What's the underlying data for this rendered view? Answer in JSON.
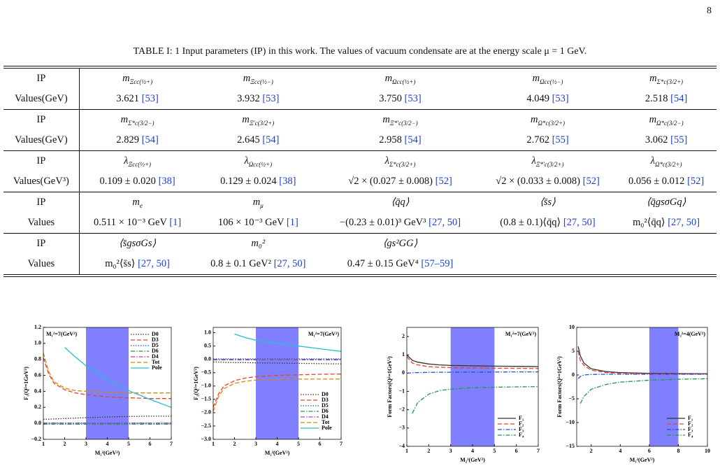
{
  "page_number": "8",
  "table": {
    "caption": "TABLE I: 1 Input parameters (IP) in this work. The values of vacuum condensate are at the energy scale μ = 1 GeV.",
    "rows": [
      [
        "IP",
        {
          "base": "m",
          "sub": "Ξcc(½+)"
        },
        {
          "base": "m",
          "sub": "Ξcc(½−)"
        },
        {
          "base": "m",
          "sub": "Ωcc(½+)"
        },
        {
          "base": "m",
          "sub": "Ωcc(½−)"
        },
        {
          "base": "m",
          "sub": "Σ*c(3/2+)"
        }
      ],
      [
        "Values(GeV)",
        {
          "text": "3.621",
          "ref": "[53]"
        },
        {
          "text": "3.932",
          "ref": "[53]"
        },
        {
          "text": "3.750",
          "ref": "[53]"
        },
        {
          "text": "4.049",
          "ref": "[53]"
        },
        {
          "text": "2.518",
          "ref": "[54]"
        }
      ],
      [
        "IP",
        {
          "base": "m",
          "sub": "Σ*c(3/2−)"
        },
        {
          "base": "m",
          "sub": "Ξ′c(3/2+)"
        },
        {
          "base": "m",
          "sub": "Ξ*′c(3/2−)"
        },
        {
          "base": "m",
          "sub": "Ω*c(3/2+)"
        },
        {
          "base": "m",
          "sub": "Ω*c(3/2−)"
        }
      ],
      [
        "Values(GeV)",
        {
          "text": "2.829",
          "ref": "[54]"
        },
        {
          "text": "2.645",
          "ref": "[54]"
        },
        {
          "text": "2.958",
          "ref": "[54]"
        },
        {
          "text": "2.762",
          "ref": "[55]"
        },
        {
          "text": "3.062",
          "ref": "[55]"
        }
      ],
      [
        "IP",
        {
          "base": "λ",
          "sub": "Ξcc(½+)"
        },
        {
          "base": "λ",
          "sub": "Ωcc(½+)"
        },
        {
          "base": "λ",
          "sub": "Σ*c(3/2+)"
        },
        {
          "base": "λ",
          "sub": "Ξ*′c(3/2+)"
        },
        {
          "base": "λ",
          "sub": "Ω*c(3/2+)"
        }
      ],
      [
        "Values(GeV³)",
        {
          "text": "0.109 ± 0.020",
          "ref": "[38]"
        },
        {
          "text": "0.129 ± 0.024",
          "ref": "[38]"
        },
        {
          "text": "√2 × (0.027 ± 0.008)",
          "ref": "[52]"
        },
        {
          "text": "√2 × (0.033 ± 0.008)",
          "ref": "[52]"
        },
        {
          "text": "0.056 ± 0.012",
          "ref": "[52]"
        }
      ],
      [
        "IP",
        {
          "base": "m",
          "sub": "e"
        },
        {
          "base": "m",
          "sub": "μ"
        },
        "⟨q̄q⟩",
        "⟨s̄s⟩",
        "⟨q̄gsσGq⟩"
      ],
      [
        "Values",
        {
          "text": "0.511 × 10⁻³ GeV",
          "ref": "[1]"
        },
        {
          "text": "106 × 10⁻³ GeV",
          "ref": "[1]"
        },
        {
          "text": "−(0.23 ± 0.01)³ GeV³",
          "ref": "[27, 50]"
        },
        {
          "text": "(0.8 ± 0.1)⟨q̄q⟩",
          "ref": "[27, 50]"
        },
        {
          "text": "m₀²⟨q̄q⟩",
          "ref": "[27, 50]"
        }
      ],
      [
        "IP",
        "⟨s̄gsσGs⟩",
        "m₀²",
        "⟨gs²GG⟩"
      ],
      [
        "Values",
        {
          "text": "m₀²⟨s̄s⟩",
          "ref": "[27, 50]"
        },
        {
          "text": "0.8 ± 0.1 GeV²",
          "ref": "[27, 50]"
        },
        {
          "text": "0.47 ± 0.15 GeV⁴",
          "ref": "[57–59]"
        }
      ]
    ]
  },
  "chart_data": [
    {
      "type": "line",
      "xlabel": "M₂²(GeV²)",
      "ylabel": "F₁(Q²=1GeV²)",
      "annotation": "M₁²=7(GeV²)",
      "legend": "upper right",
      "x": [
        1,
        1.25,
        1.5,
        2,
        2.5,
        3,
        4,
        5,
        6,
        7
      ],
      "xlim": [
        1,
        7
      ],
      "xticks": [
        1,
        2,
        3,
        4,
        5,
        6,
        7
      ],
      "ylim": [
        -0.2,
        1.2
      ],
      "yticks": [
        {
          "value": -0.2,
          "label": "−0.2"
        },
        {
          "value": 0,
          "label": "0.0"
        },
        0.2,
        0.4,
        0.6,
        0.8,
        {
          "value": 1,
          "label": "1.0"
        },
        1.2
      ],
      "band": {
        "x": [
          3,
          5
        ],
        "color": "#8080ff"
      },
      "series": [
        {
          "name": "D0",
          "color": "#333333",
          "dash": "dotted",
          "values": [
            0.05,
            0.052,
            0.055,
            0.06,
            0.065,
            0.07,
            0.08,
            0.085,
            0.09,
            0.09
          ]
        },
        {
          "name": "D3",
          "color": "#e8402f",
          "dash": "dashed",
          "values": [
            0.82,
            0.62,
            0.5,
            0.42,
            0.38,
            0.36,
            0.33,
            0.32,
            0.31,
            0.31
          ]
        },
        {
          "name": "D5",
          "color": "#1f4fe0",
          "dash": "dotted",
          "values": [
            0,
            0,
            0,
            0,
            0,
            0,
            0,
            0,
            0,
            0
          ]
        },
        {
          "name": "D6",
          "color": "#1a9a50",
          "dash": "dashdot",
          "values": [
            -0.01,
            -0.01,
            -0.01,
            -0.01,
            -0.01,
            -0.01,
            -0.01,
            -0.01,
            -0.01,
            -0.01
          ]
        },
        {
          "name": "D4",
          "color": "#b040c0",
          "dash": "dashdot",
          "values": [
            0.005,
            0.005,
            0.005,
            0.005,
            0.005,
            0.005,
            0.005,
            0.005,
            0.005,
            0.005
          ]
        },
        {
          "name": "Tot",
          "color": "#d08a00",
          "dash": "dashed",
          "values": [
            0.88,
            0.65,
            0.52,
            0.44,
            0.41,
            0.4,
            0.39,
            0.38,
            0.38,
            0.38
          ]
        },
        {
          "name": "Pole",
          "color": "#20c0d0",
          "dash": "solid",
          "values": [
            null,
            null,
            null,
            0.95,
            0.83,
            0.72,
            0.55,
            0.41,
            0.3,
            0.2
          ]
        }
      ]
    },
    {
      "type": "line",
      "xlabel": "M₂²(GeV²)",
      "ylabel": "F₂(Q²=1GeV²)",
      "annotation": "M₁²=7(GeV²)",
      "legend": "lower right",
      "x": [
        1,
        1.25,
        1.5,
        2,
        2.5,
        3,
        4,
        5,
        6,
        7
      ],
      "xlim": [
        1,
        7
      ],
      "xticks": [
        1,
        2,
        3,
        4,
        5,
        6,
        7
      ],
      "ylim": [
        -3,
        1.2
      ],
      "yticks": [
        {
          "value": -3,
          "label": "−3.0"
        },
        {
          "value": -2.5,
          "label": "−2.5"
        },
        {
          "value": -2,
          "label": "−2.0"
        },
        {
          "value": -1.5,
          "label": "−1.5"
        },
        {
          "value": -1,
          "label": "−1.0"
        },
        {
          "value": -0.5,
          "label": "−0.5"
        },
        {
          "value": 0,
          "label": "0.0"
        },
        0.5,
        {
          "value": 1,
          "label": "1.0"
        }
      ],
      "band": {
        "x": [
          3,
          5
        ],
        "color": "#8080ff"
      },
      "series": [
        {
          "name": "D0",
          "color": "#333333",
          "dash": "dotted",
          "values": [
            -0.1,
            -0.1,
            -0.11,
            -0.12,
            -0.12,
            -0.13,
            -0.14,
            -0.15,
            -0.16,
            -0.17
          ]
        },
        {
          "name": "D3",
          "color": "#e8402f",
          "dash": "dashed",
          "values": [
            -1.8,
            -1.3,
            -1.0,
            -0.8,
            -0.7,
            -0.65,
            -0.6,
            -0.58,
            -0.56,
            -0.55
          ]
        },
        {
          "name": "D5",
          "color": "#1f4fe0",
          "dash": "dotted",
          "values": [
            0.02,
            0.02,
            0.02,
            0.02,
            0.02,
            0.02,
            0.02,
            0.02,
            0.02,
            0.02
          ]
        },
        {
          "name": "D6",
          "color": "#1a9a50",
          "dash": "dashdot",
          "values": [
            -0.02,
            -0.02,
            -0.02,
            -0.02,
            -0.02,
            -0.02,
            -0.02,
            -0.02,
            -0.02,
            -0.02
          ]
        },
        {
          "name": "D4",
          "color": "#b040c0",
          "dash": "dashdot",
          "values": [
            0,
            0,
            0,
            0,
            0,
            0,
            0,
            0,
            0,
            0
          ]
        },
        {
          "name": "Tot",
          "color": "#d08a00",
          "dash": "dashed",
          "values": [
            -1.95,
            -1.4,
            -1.1,
            -0.9,
            -0.82,
            -0.78,
            -0.75,
            -0.74,
            -0.74,
            -0.74
          ]
        },
        {
          "name": "Pole",
          "color": "#20c0d0",
          "dash": "solid",
          "values": [
            null,
            null,
            null,
            0.95,
            0.82,
            0.72,
            0.6,
            0.5,
            0.4,
            0.3
          ]
        }
      ]
    },
    {
      "type": "line",
      "xlabel": "M₂²(GeV²)",
      "ylabel": "Form Factors(Q²=1GeV²)",
      "annotation": "M₁²=7(GeV²)",
      "legend": "lower right",
      "x": [
        1,
        1.25,
        1.5,
        2,
        2.5,
        3,
        4,
        5,
        6,
        7
      ],
      "xlim": [
        1,
        7
      ],
      "xticks": [
        1,
        2,
        3,
        4,
        5,
        6,
        7
      ],
      "ylim": [
        -4,
        2.5
      ],
      "yticks": [
        {
          "value": -4,
          "label": "−4"
        },
        {
          "value": -3,
          "label": "−3"
        },
        {
          "value": -2,
          "label": "−2"
        },
        {
          "value": -1,
          "label": "−1"
        },
        0,
        1,
        2
      ],
      "band": {
        "x": [
          3,
          5
        ],
        "color": "#8080ff"
      },
      "series": [
        {
          "name": "F₁",
          "color": "#333333",
          "dash": "solid",
          "values": [
            1.0,
            0.7,
            0.6,
            0.5,
            0.45,
            0.42,
            0.4,
            0.38,
            0.37,
            0.36
          ]
        },
        {
          "name": "F₂",
          "color": "#e8402f",
          "dash": "dashed",
          "values": [
            0.9,
            0.55,
            0.45,
            0.35,
            0.32,
            0.3,
            0.28,
            0.27,
            0.26,
            0.25
          ]
        },
        {
          "name": "F₃",
          "color": "#1f4fe0",
          "dash": "dashdot",
          "values": [
            0,
            0.02,
            0.03,
            0.04,
            0.05,
            0.05,
            0.06,
            0.06,
            0.07,
            0.07
          ]
        },
        {
          "name": "F₄",
          "color": "#1a9a50",
          "dash": "dashdot",
          "values": [
            null,
            -2.2,
            -1.6,
            -1.15,
            -0.95,
            -0.88,
            -0.8,
            -0.77,
            -0.75,
            -0.74
          ]
        }
      ]
    },
    {
      "type": "line",
      "xlabel": "M₁²(GeV²)",
      "ylabel": "Form Factors(Q²=1GeV²)",
      "annotation": "M₂²=4(GeV²)",
      "legend": "lower right",
      "x": [
        1.1,
        1.25,
        1.5,
        2,
        3,
        4,
        6,
        8,
        10
      ],
      "xlim": [
        1,
        10
      ],
      "xticks": [
        2,
        4,
        6,
        8,
        10
      ],
      "ylim": [
        -15,
        10
      ],
      "yticks": [
        {
          "value": -15,
          "label": "−15"
        },
        {
          "value": -10,
          "label": "−10"
        },
        {
          "value": -5,
          "label": "−5"
        },
        0,
        5,
        10
      ],
      "band": {
        "x": [
          6,
          8
        ],
        "color": "#8080ff"
      },
      "series": [
        {
          "name": "F₁",
          "color": "#333333",
          "dash": "solid",
          "values": [
            6,
            4,
            2.5,
            1.3,
            0.7,
            0.5,
            0.35,
            0.3,
            0.25
          ]
        },
        {
          "name": "F₂",
          "color": "#e8402f",
          "dash": "dashed",
          "values": [
            5,
            3,
            2,
            1,
            0.5,
            0.35,
            0.25,
            0.2,
            0.18
          ]
        },
        {
          "name": "F₃",
          "color": "#1f4fe0",
          "dash": "dashdot",
          "values": [
            -0.8,
            -0.3,
            0,
            0.1,
            0.15,
            0.15,
            0.15,
            0.15,
            0.15
          ]
        },
        {
          "name": "F₄",
          "color": "#1a9a50",
          "dash": "dashdot",
          "values": [
            null,
            -6,
            -4.5,
            -3,
            -2,
            -1.5,
            -1.1,
            -0.9,
            -0.8
          ]
        }
      ]
    }
  ]
}
